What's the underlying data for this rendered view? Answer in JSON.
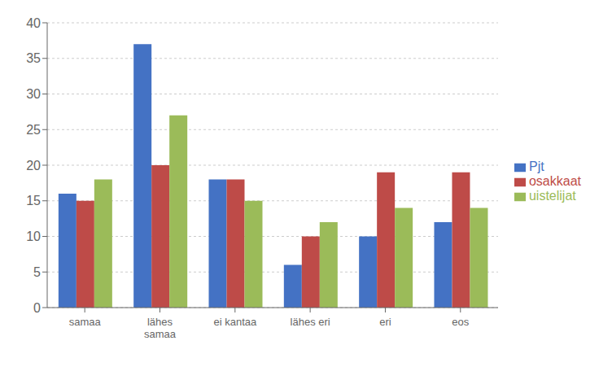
{
  "chart_data": {
    "type": "bar",
    "categories": [
      "samaa",
      "lähes\nsamaa",
      "ei kantaa",
      "lähes eri",
      "eri",
      "eos"
    ],
    "series": [
      {
        "name": "Pjt",
        "color": "#4472C4",
        "values": [
          16,
          37,
          18,
          6,
          10,
          12
        ]
      },
      {
        "name": "osakkaat",
        "color": "#BE4B48",
        "values": [
          15,
          20,
          18,
          10,
          19,
          19
        ]
      },
      {
        "name": "uistelijat",
        "color": "#9BBB59",
        "values": [
          18,
          27,
          15,
          12,
          14,
          14
        ]
      }
    ],
    "ylim": [
      0,
      40
    ],
    "yticks": [
      0,
      5,
      10,
      15,
      20,
      25,
      30,
      35,
      40
    ],
    "grid": true,
    "legend": "right"
  }
}
